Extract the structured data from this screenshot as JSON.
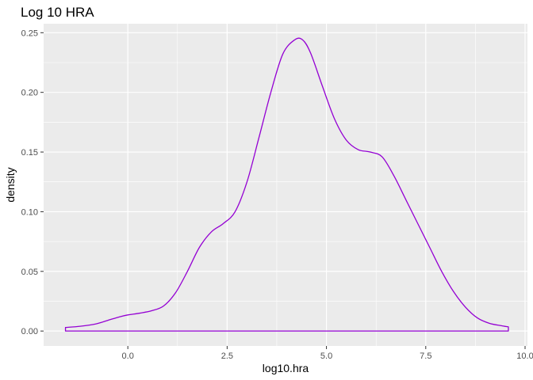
{
  "chart_data": {
    "type": "area",
    "title": "Log 10 HRA",
    "xlabel": "log10.hra",
    "ylabel": "density",
    "xlim": [
      -2.12,
      10.06
    ],
    "ylim": [
      -0.0125,
      0.2575
    ],
    "x_ticks": [
      0.0,
      2.5,
      5.0,
      7.5,
      10.0
    ],
    "x_tick_labels": [
      "0.0",
      "2.5",
      "5.0",
      "7.5",
      "10.0"
    ],
    "y_ticks": [
      0.0,
      0.05,
      0.1,
      0.15,
      0.2,
      0.25
    ],
    "y_tick_labels": [
      "0.00",
      "0.05",
      "0.10",
      "0.15",
      "0.20",
      "0.25"
    ],
    "grid": true,
    "legend": "none",
    "series": [
      {
        "color": "#9400D3",
        "fill": "none",
        "x": [
          -1.57,
          -1.2,
          -0.8,
          -0.5,
          -0.2,
          0.0,
          0.3,
          0.6,
          0.9,
          1.2,
          1.5,
          1.8,
          2.1,
          2.4,
          2.7,
          3.0,
          3.3,
          3.6,
          3.9,
          4.2,
          4.4,
          4.6,
          4.9,
          5.2,
          5.5,
          5.8,
          6.1,
          6.4,
          6.7,
          7.0,
          7.3,
          7.6,
          7.9,
          8.2,
          8.5,
          8.8,
          9.1,
          9.4,
          9.58
        ],
        "y": [
          0.003,
          0.004,
          0.006,
          0.009,
          0.012,
          0.0135,
          0.015,
          0.017,
          0.021,
          0.032,
          0.05,
          0.07,
          0.083,
          0.09,
          0.1,
          0.125,
          0.162,
          0.2,
          0.232,
          0.244,
          0.244,
          0.233,
          0.205,
          0.178,
          0.16,
          0.152,
          0.15,
          0.146,
          0.13,
          0.11,
          0.09,
          0.07,
          0.05,
          0.033,
          0.02,
          0.011,
          0.0065,
          0.0045,
          0.0035
        ]
      }
    ]
  }
}
